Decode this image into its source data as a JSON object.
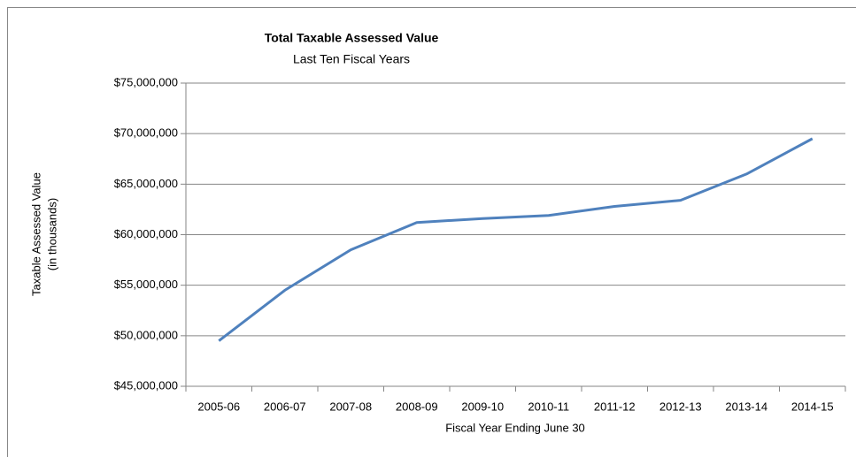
{
  "chart_data": {
    "type": "line",
    "title": "Total Taxable Assessed Value",
    "subtitle": "Last Ten Fiscal Years",
    "y_label": [
      "Taxable Assessed Value",
      "(in thousands)"
    ],
    "x_label": "Fiscal Year Ending June 30",
    "categories": [
      "2005-06",
      "2006-07",
      "2007-08",
      "2008-09",
      "2009-10",
      "2010-11",
      "2011-12",
      "2012-13",
      "2013-14",
      "2014-15"
    ],
    "series": [
      {
        "name": "Total Taxable Assessed Value",
        "color": "#4f81bd",
        "values": [
          49500000,
          54500000,
          58500000,
          61200000,
          61600000,
          61900000,
          62800000,
          63400000,
          66000000,
          69500000
        ]
      }
    ],
    "ylim": [
      45000000,
      75000000
    ],
    "yticks": [
      {
        "value": 45000000,
        "label": "$45,000,000"
      },
      {
        "value": 50000000,
        "label": "$50,000,000"
      },
      {
        "value": 55000000,
        "label": "$55,000,000"
      },
      {
        "value": 60000000,
        "label": "$60,000,000"
      },
      {
        "value": 65000000,
        "label": "$65,000,000"
      },
      {
        "value": 70000000,
        "label": "$70,000,000"
      },
      {
        "value": 75000000,
        "label": "$75,000,000"
      }
    ],
    "grid": true,
    "legend": false
  }
}
